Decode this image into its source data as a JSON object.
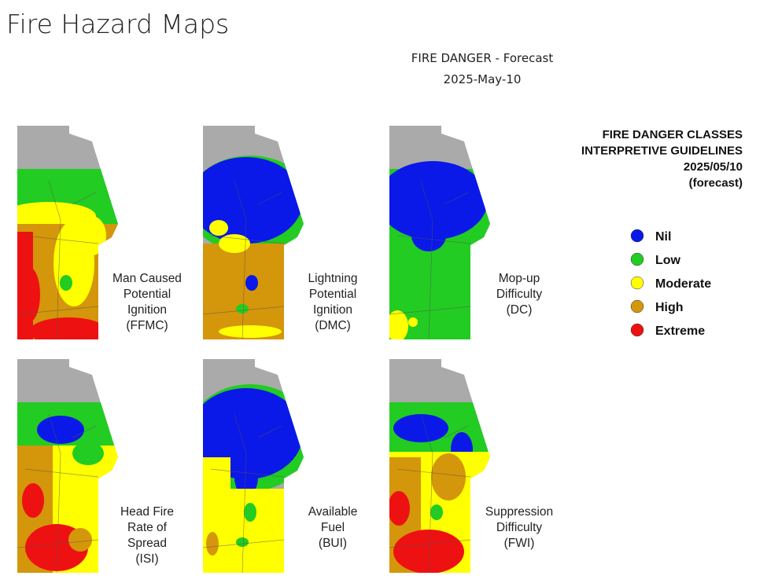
{
  "header": {
    "title": "Fire Hazard Maps"
  },
  "forecast": {
    "title": "FIRE DANGER - Forecast",
    "date": "2025-May-10"
  },
  "legend": {
    "heading": [
      "FIRE DANGER CLASSES",
      "INTERPRETIVE GUIDELINES",
      "2025/05/10",
      "(forecast)"
    ],
    "classes": [
      {
        "label": "Nil",
        "color": "#0a18e8"
      },
      {
        "label": "Low",
        "color": "#22cc22"
      },
      {
        "label": "Moderate",
        "color": "#ffff00"
      },
      {
        "label": "High",
        "color": "#d4960a"
      },
      {
        "label": "Extreme",
        "color": "#ee1111"
      }
    ]
  },
  "maps": [
    {
      "label": [
        "Man Caused",
        "Potential",
        "Ignition",
        "(FFMC)"
      ]
    },
    {
      "label": [
        "Lightning",
        "Potential",
        "Ignition",
        "(DMC)"
      ]
    },
    {
      "label": [
        "Mop-up",
        "Difficulty",
        "(DC)"
      ]
    },
    {
      "label": [
        "Head Fire",
        "Rate of",
        "Spread",
        "(ISI)"
      ]
    },
    {
      "label": [
        "Available",
        "Fuel",
        "(BUI)"
      ]
    },
    {
      "label": [
        "Suppression",
        "Difficulty",
        "(FWI)"
      ]
    }
  ]
}
